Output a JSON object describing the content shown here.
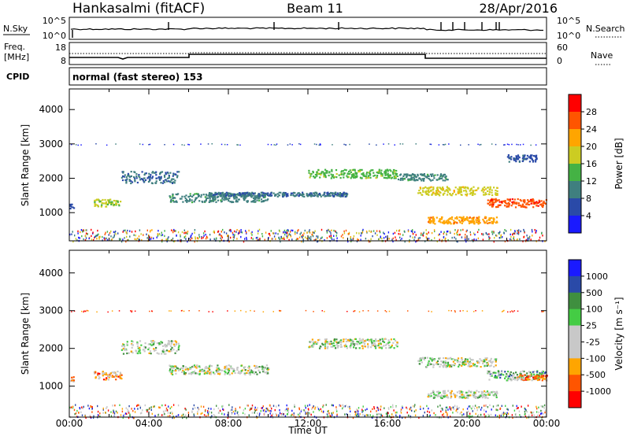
{
  "header": {
    "station": "Hankasalmi (fitACF)",
    "beam": "Beam 11",
    "date": "28/Apr/2016"
  },
  "strips": {
    "nsky_label": "N.Sky",
    "nsky_ticks": [
      "10^5",
      "10^0"
    ],
    "nsearch_label": "N.Search",
    "nsearch_ticks": [
      "10^5",
      "10^0"
    ],
    "freq_label": "Freq.",
    "freq_unit": "[MHz]",
    "freq_ticks": [
      "18",
      "8"
    ],
    "nave_label": "Nave",
    "nave_ticks": [
      "60",
      "0"
    ],
    "cpid_label": "CPID",
    "cpid_text": "normal (fast stereo) 153"
  },
  "colors": {
    "power_scale": [
      "#1a1aff",
      "#2a4aa8",
      "#3f7f7f",
      "#44b244",
      "#cccc22",
      "#ffa500",
      "#ff5500",
      "#ff0000"
    ],
    "velocity_scale": [
      "#ff0000",
      "#ff5500",
      "#ffa500",
      "#c8c8c8",
      "#c8c8c8",
      "#44cc44",
      "#3f8f3f",
      "#2a4aa8",
      "#1a1aff"
    ]
  },
  "chart_data": [
    {
      "type": "heatmap",
      "name": "power",
      "title": "",
      "ylabel": "Slant Range [km]",
      "xlabel": "",
      "ylim": [
        180,
        4600
      ],
      "y_ticks": [
        "4000",
        "3000",
        "2000",
        "1000"
      ],
      "x_ticks": [],
      "colorbar": {
        "label": "Power [dB]",
        "range": [
          0,
          32
        ],
        "ticks": [
          "28",
          "24",
          "20",
          "16",
          "12",
          "8",
          "4"
        ]
      },
      "features": [
        {
          "start_ut": 0.0,
          "end_ut": 0.2,
          "range_km": 1200,
          "width_km": 150,
          "level": 6
        },
        {
          "start_ut": 1.2,
          "end_ut": 2.6,
          "range_km": 1300,
          "width_km": 220,
          "level": 16
        },
        {
          "start_ut": 2.6,
          "end_ut": 5.5,
          "range_km": 2050,
          "width_km": 350,
          "level": 8
        },
        {
          "start_ut": 5.0,
          "end_ut": 10.0,
          "range_km": 1450,
          "width_km": 250,
          "level": 10
        },
        {
          "start_ut": 7.0,
          "end_ut": 14.0,
          "range_km": 1550,
          "width_km": 120,
          "level": 8
        },
        {
          "start_ut": 12.0,
          "end_ut": 16.5,
          "range_km": 2150,
          "width_km": 250,
          "level": 14
        },
        {
          "start_ut": 16.5,
          "end_ut": 19.0,
          "range_km": 2050,
          "width_km": 200,
          "level": 10
        },
        {
          "start_ut": 17.5,
          "end_ut": 21.5,
          "range_km": 1650,
          "width_km": 250,
          "level": 18
        },
        {
          "start_ut": 18.0,
          "end_ut": 21.5,
          "range_km": 800,
          "width_km": 200,
          "level": 22
        },
        {
          "start_ut": 21.0,
          "end_ut": 24.0,
          "range_km": 1300,
          "width_km": 250,
          "level": 26
        },
        {
          "start_ut": 22.0,
          "end_ut": 23.5,
          "range_km": 2600,
          "width_km": 200,
          "level": 6
        }
      ]
    },
    {
      "type": "heatmap",
      "name": "velocity",
      "title": "",
      "ylabel": "Slant Range [km]",
      "xlabel": "Time UT",
      "ylim": [
        180,
        4600
      ],
      "y_ticks": [
        "4000",
        "3000",
        "2000",
        "1000"
      ],
      "x_ticks": [
        "00:00",
        "04:00",
        "08:00",
        "12:00",
        "16:00",
        "20:00",
        "00:00"
      ],
      "colorbar": {
        "label": "Velocity [m s⁻¹]",
        "ticks": [
          "1000",
          "500",
          "100",
          "25",
          "-25",
          "-100",
          "-500",
          "-1000"
        ]
      },
      "features": [
        {
          "start_ut": 0.0,
          "end_ut": 0.2,
          "range_km": 1200,
          "width_km": 150,
          "level": 2
        },
        {
          "start_ut": 1.2,
          "end_ut": 2.6,
          "range_km": 1300,
          "width_km": 220,
          "level": 2
        },
        {
          "start_ut": 2.6,
          "end_ut": 5.5,
          "range_km": 2050,
          "width_km": 350,
          "level": 4
        },
        {
          "start_ut": 5.0,
          "end_ut": 10.0,
          "range_km": 1450,
          "width_km": 250,
          "level": 4
        },
        {
          "start_ut": 12.0,
          "end_ut": 16.5,
          "range_km": 2150,
          "width_km": 250,
          "level": 4
        },
        {
          "start_ut": 17.5,
          "end_ut": 21.5,
          "range_km": 1650,
          "width_km": 250,
          "level": 4
        },
        {
          "start_ut": 18.0,
          "end_ut": 21.5,
          "range_km": 800,
          "width_km": 200,
          "level": 4
        },
        {
          "start_ut": 21.0,
          "end_ut": 24.0,
          "range_km": 1300,
          "width_km": 250,
          "level": 5
        },
        {
          "start_ut": 22.5,
          "end_ut": 24.0,
          "range_km": 1250,
          "width_km": 150,
          "level": 2
        }
      ]
    }
  ]
}
